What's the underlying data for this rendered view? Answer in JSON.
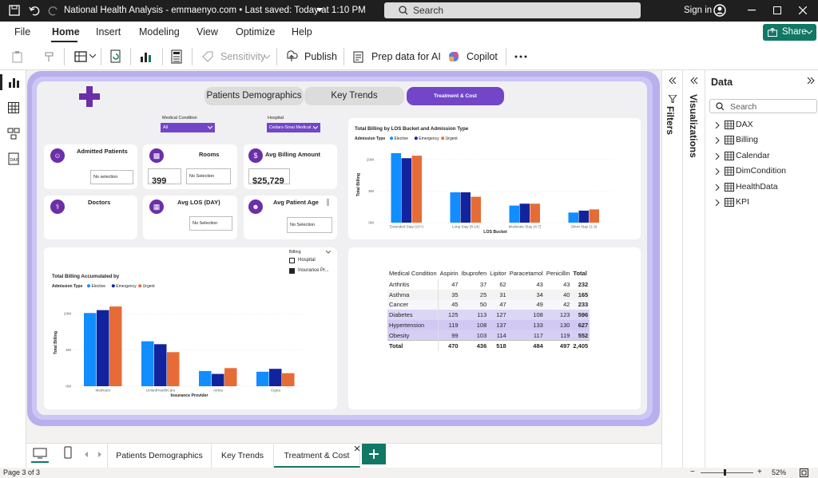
{
  "titlebar": {
    "title": "National Health Analysis - emmaenyo.com • Last saved: Today at 1:10 PM",
    "search_placeholder": "Search",
    "signin": "Sign in"
  },
  "menu": {
    "items": [
      "File",
      "Home",
      "Insert",
      "Modeling",
      "View",
      "Optimize",
      "Help"
    ],
    "share": "Share"
  },
  "ribbon": {
    "sensitivity": "Sensitivity",
    "publish": "Publish",
    "prep": "Prep data for AI",
    "copilot": "Copilot"
  },
  "report": {
    "tabs": [
      "Patients Demographics",
      "Key Trends",
      "Treatment & Cost"
    ],
    "slicers": [
      {
        "label": "Medical Condition",
        "value": "All"
      },
      {
        "label": "Hospital",
        "value": "Cedars-Sinai Medical ..."
      }
    ],
    "kpis": [
      {
        "title": "Admitted Patients",
        "box": "No selection",
        "value": ""
      },
      {
        "title": "Rooms",
        "box": "No Selection",
        "value": "399"
      },
      {
        "title": "Avg Billing Amount",
        "box": "",
        "value": "$25,729"
      },
      {
        "title": "Doctors",
        "box": "",
        "value": ""
      },
      {
        "title": "Avg LOS (DAY)",
        "box": "No Selection",
        "value": ""
      },
      {
        "title": "Avg Patient Age",
        "box": "No Selection",
        "value": ""
      }
    ],
    "billing_slicer": {
      "title": "Billing",
      "options": [
        "Hospital",
        "Insurance Pr..."
      ]
    }
  },
  "chart_data": [
    {
      "type": "bar",
      "title": "Total Billing by LOS Bucket and Admission Type",
      "legend_title": "Admission Type",
      "xlabel": "LOS Bucket",
      "ylabel": "Total Billing",
      "yticks": [
        "10M",
        "5M",
        "0M"
      ],
      "ylim": [
        0,
        12
      ],
      "categories": [
        "Extended Stay (15+)",
        "Long Stay (8-14)",
        "Moderate Stay (4-7)",
        "Short Stay (1-3)"
      ],
      "series": [
        {
          "name": "Elective",
          "color": "#118dff",
          "values": [
            11.0,
            4.8,
            2.7,
            1.6
          ]
        },
        {
          "name": "Emergency",
          "color": "#12239e",
          "values": [
            10.2,
            4.8,
            3.0,
            1.9
          ]
        },
        {
          "name": "Urgent",
          "color": "#e66c37",
          "values": [
            10.6,
            4.1,
            3.0,
            2.1
          ]
        }
      ]
    },
    {
      "type": "bar",
      "title": "Total Billing Accumulated by",
      "legend_title": "Admission Type",
      "xlabel": "Insurance Provider",
      "ylabel": "Total Billing",
      "yticks": [
        "10M",
        "5M",
        "0M"
      ],
      "ylim": [
        0,
        12
      ],
      "categories": [
        "Medicare",
        "UnitedHealthCare",
        "Aetna",
        "Cigna"
      ],
      "series": [
        {
          "name": "Elective",
          "color": "#118dff",
          "values": [
            10.1,
            6.2,
            2.1,
            2.0
          ]
        },
        {
          "name": "Emergency",
          "color": "#12239e",
          "values": [
            10.5,
            5.8,
            1.7,
            2.4
          ]
        },
        {
          "name": "Urgent",
          "color": "#e66c37",
          "values": [
            11.0,
            4.7,
            2.5,
            1.8
          ]
        }
      ]
    },
    {
      "type": "table",
      "columns": [
        "Medical Condition",
        "Aspirin",
        "Ibuprofen",
        "Lipitor",
        "Paracetamol",
        "Penicillin",
        "Total"
      ],
      "rows": [
        [
          "Arthritis",
          "47",
          "37",
          "62",
          "43",
          "43",
          "232"
        ],
        [
          "Asthma",
          "35",
          "25",
          "31",
          "34",
          "40",
          "165"
        ],
        [
          "Cancer",
          "45",
          "50",
          "47",
          "49",
          "42",
          "233"
        ],
        [
          "Diabetes",
          "125",
          "113",
          "127",
          "108",
          "123",
          "596"
        ],
        [
          "Hypertension",
          "119",
          "108",
          "137",
          "133",
          "130",
          "627"
        ],
        [
          "Obesity",
          "99",
          "103",
          "114",
          "117",
          "119",
          "552"
        ],
        [
          "Total",
          "470",
          "436",
          "518",
          "484",
          "497",
          "2,405"
        ]
      ]
    }
  ],
  "panes": {
    "filters": "Filters",
    "visualizations": "Visualizations",
    "data_title": "Data",
    "data_search": "Search",
    "tables": [
      "DAX",
      "Billing",
      "Calendar",
      "DimCondition",
      "HealthData",
      "KPI"
    ]
  },
  "pagetabs": [
    "Patients Demographics",
    "Key Trends",
    "Treatment & Cost"
  ],
  "status": {
    "page": "Page 3 of 3",
    "zoom": "52%"
  }
}
